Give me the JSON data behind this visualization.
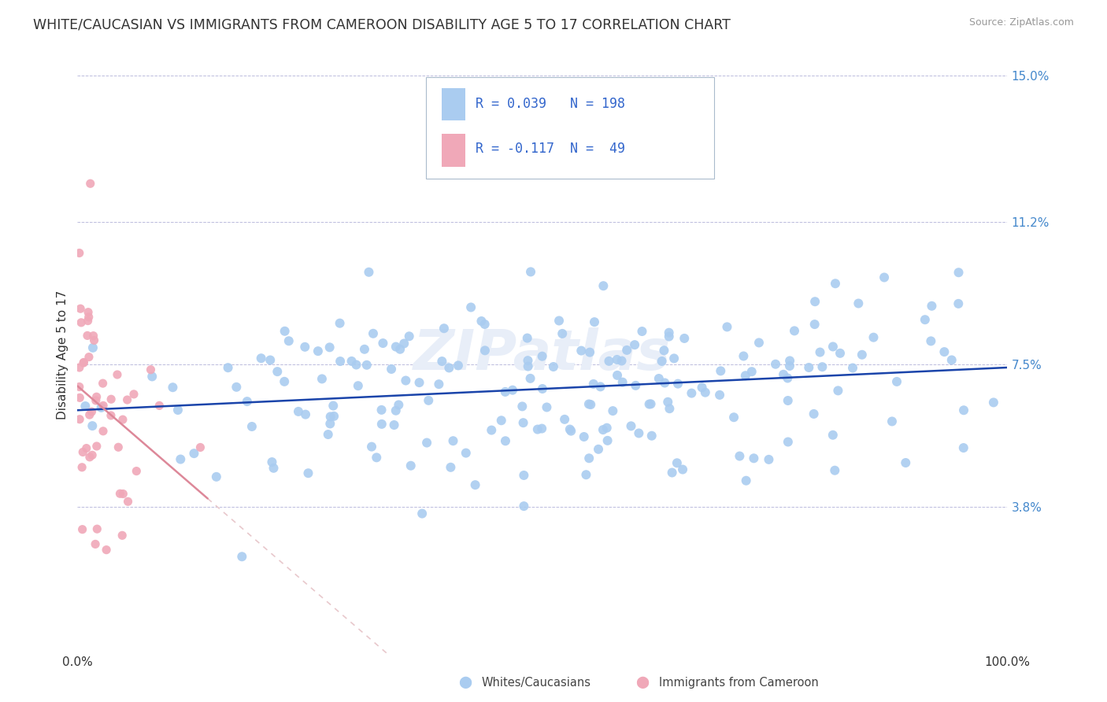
{
  "title": "WHITE/CAUCASIAN VS IMMIGRANTS FROM CAMEROON DISABILITY AGE 5 TO 17 CORRELATION CHART",
  "source": "Source: ZipAtlas.com",
  "ylabel": "Disability Age 5 to 17",
  "xlim": [
    0,
    1.0
  ],
  "ylim": [
    0.0,
    0.155
  ],
  "yticks": [
    0.0,
    0.038,
    0.075,
    0.112,
    0.15
  ],
  "ytick_labels": [
    "",
    "3.8%",
    "7.5%",
    "11.2%",
    "15.0%"
  ],
  "blue_R": 0.039,
  "blue_N": 198,
  "pink_R": -0.117,
  "pink_N": 49,
  "blue_color": "#aaccf0",
  "pink_color": "#f0a8b8",
  "blue_line_color": "#1a44aa",
  "pink_line_color": "#dd8899",
  "pink_dash_color": "#e8c8cc",
  "title_fontsize": 12.5,
  "label_fontsize": 11,
  "tick_fontsize": 11,
  "legend_text_color": "#3366cc",
  "tick_color": "#4488cc",
  "watermark_text": "ZIPatlas",
  "bottom_legend_blue": "Whites/Caucasians",
  "bottom_legend_pink": "Immigrants from Cameroon"
}
